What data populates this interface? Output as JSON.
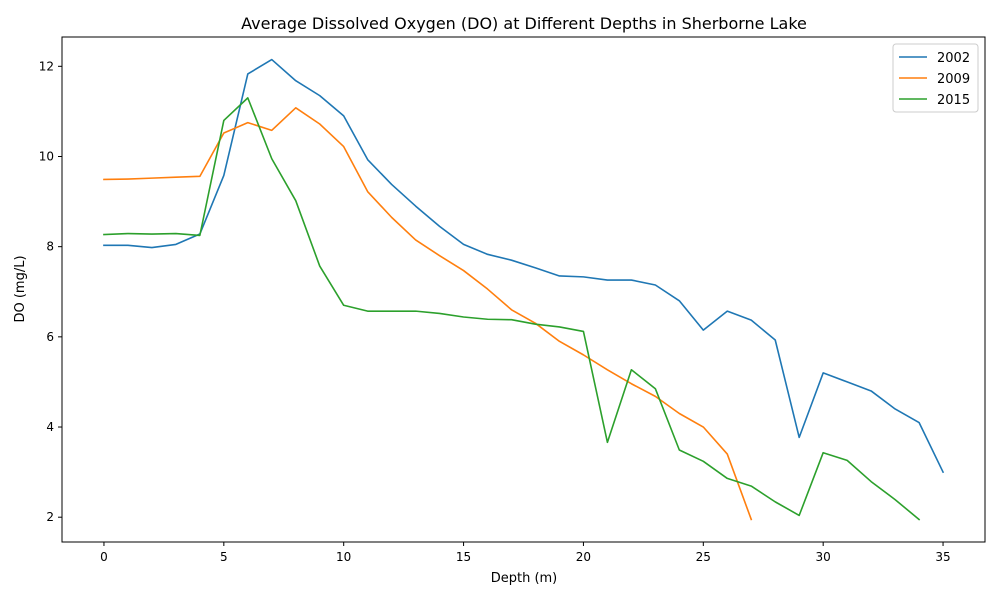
{
  "chart_data": {
    "type": "line",
    "title": "Average Dissolved Oxygen (DO) at Different Depths in Sherborne Lake",
    "xlabel": "Depth (m)",
    "ylabel": "DO (mg/L)",
    "xlim": [
      -1.75,
      36.75
    ],
    "ylim": [
      1.45,
      12.65
    ],
    "xticks": [
      0,
      5,
      10,
      15,
      20,
      25,
      30,
      35
    ],
    "yticks": [
      2,
      4,
      6,
      8,
      10,
      12
    ],
    "grid": false,
    "legend_position": "top-right",
    "series": [
      {
        "name": "2002",
        "color": "#1f77b4",
        "x": [
          0,
          1,
          2,
          3,
          4,
          5,
          6,
          7,
          8,
          9,
          10,
          11,
          12,
          13,
          14,
          15,
          16,
          17,
          18,
          19,
          20,
          21,
          22,
          23,
          24,
          25,
          26,
          27,
          28,
          29,
          30,
          31,
          32,
          33,
          34,
          35
        ],
        "values": [
          8.03,
          8.03,
          7.98,
          8.05,
          8.28,
          9.58,
          11.83,
          12.15,
          11.68,
          11.35,
          10.9,
          9.93,
          9.38,
          8.9,
          8.45,
          8.05,
          7.83,
          7.7,
          7.53,
          7.35,
          7.33,
          7.26,
          7.26,
          7.15,
          6.8,
          6.15,
          6.57,
          6.37,
          5.93,
          3.77,
          5.2,
          5.0,
          4.8,
          4.4,
          4.1,
          3.0
        ]
      },
      {
        "name": "2009",
        "color": "#ff7f0e",
        "x": [
          0,
          1,
          2,
          3,
          4,
          5,
          6,
          7,
          8,
          9,
          10,
          11,
          12,
          13,
          14,
          15,
          16,
          17,
          18,
          19,
          20,
          21,
          22,
          23,
          24,
          25,
          26,
          27
        ],
        "values": [
          9.49,
          9.5,
          9.52,
          9.54,
          9.56,
          10.52,
          10.75,
          10.58,
          11.08,
          10.72,
          10.22,
          9.22,
          8.65,
          8.15,
          7.8,
          7.47,
          7.06,
          6.6,
          6.3,
          5.9,
          5.6,
          5.27,
          4.96,
          4.68,
          4.3,
          4.0,
          3.4,
          1.95
        ]
      },
      {
        "name": "2015",
        "color": "#2ca02c",
        "x": [
          0,
          1,
          2,
          3,
          4,
          5,
          6,
          7,
          8,
          9,
          10,
          11,
          12,
          13,
          14,
          15,
          16,
          17,
          18,
          19,
          20,
          21,
          22,
          23,
          24,
          25,
          26,
          27,
          28,
          29,
          30,
          31,
          32,
          33,
          34
        ],
        "values": [
          8.27,
          8.29,
          8.28,
          8.29,
          8.25,
          10.8,
          11.3,
          9.95,
          9.02,
          7.57,
          6.7,
          6.57,
          6.57,
          6.57,
          6.52,
          6.44,
          6.39,
          6.38,
          6.28,
          6.22,
          6.12,
          3.66,
          5.27,
          4.85,
          3.49,
          3.24,
          2.86,
          2.69,
          2.34,
          2.04,
          3.43,
          3.26,
          2.79,
          2.39,
          1.95
        ]
      }
    ]
  }
}
